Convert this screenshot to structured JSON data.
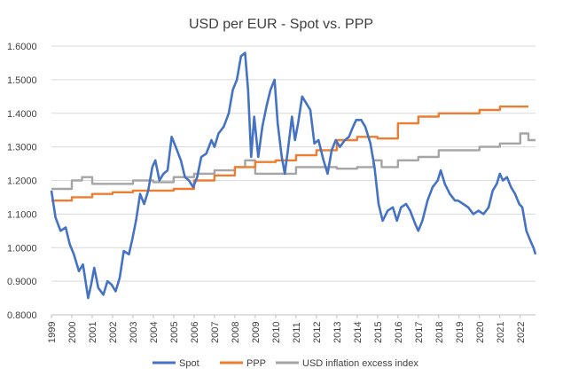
{
  "chart_data": {
    "type": "line",
    "title": "USD per EUR - Spot vs. PPP",
    "xlabel": "",
    "ylabel": "",
    "xlim": [
      1999,
      2022.75
    ],
    "ylim": [
      0.8,
      1.6
    ],
    "y_ticks": [
      "0.8000",
      "0.9000",
      "1.0000",
      "1.1000",
      "1.2000",
      "1.3000",
      "1.4000",
      "1.5000",
      "1.6000"
    ],
    "x_ticks": [
      "1999",
      "2000",
      "2001",
      "2002",
      "2003",
      "2004",
      "2005",
      "2006",
      "2007",
      "2008",
      "2009",
      "2010",
      "2011",
      "2012",
      "2013",
      "2014",
      "2015",
      "2016",
      "2017",
      "2018",
      "2019",
      "2020",
      "2021",
      "2022"
    ],
    "grid": "horizontal",
    "legend_position": "bottom",
    "series": [
      {
        "name": "Spot",
        "color": "#4472C4",
        "points": [
          [
            1999.0,
            1.17
          ],
          [
            1999.2,
            1.09
          ],
          [
            1999.45,
            1.05
          ],
          [
            1999.7,
            1.06
          ],
          [
            1999.9,
            1.01
          ],
          [
            2000.1,
            0.98
          ],
          [
            2000.35,
            0.93
          ],
          [
            2000.55,
            0.95
          ],
          [
            2000.8,
            0.85
          ],
          [
            2000.95,
            0.89
          ],
          [
            2001.1,
            0.94
          ],
          [
            2001.3,
            0.88
          ],
          [
            2001.55,
            0.86
          ],
          [
            2001.75,
            0.9
          ],
          [
            2001.95,
            0.89
          ],
          [
            2002.15,
            0.87
          ],
          [
            2002.35,
            0.91
          ],
          [
            2002.55,
            0.99
          ],
          [
            2002.8,
            0.98
          ],
          [
            2002.95,
            1.02
          ],
          [
            2003.15,
            1.08
          ],
          [
            2003.35,
            1.16
          ],
          [
            2003.55,
            1.13
          ],
          [
            2003.75,
            1.17
          ],
          [
            2003.95,
            1.24
          ],
          [
            2004.1,
            1.26
          ],
          [
            2004.3,
            1.2
          ],
          [
            2004.5,
            1.22
          ],
          [
            2004.7,
            1.23
          ],
          [
            2004.9,
            1.33
          ],
          [
            2005.1,
            1.3
          ],
          [
            2005.35,
            1.26
          ],
          [
            2005.55,
            1.21
          ],
          [
            2005.75,
            1.2
          ],
          [
            2005.95,
            1.18
          ],
          [
            2006.15,
            1.21
          ],
          [
            2006.35,
            1.27
          ],
          [
            2006.6,
            1.28
          ],
          [
            2006.85,
            1.32
          ],
          [
            2007.0,
            1.3
          ],
          [
            2007.2,
            1.34
          ],
          [
            2007.45,
            1.36
          ],
          [
            2007.7,
            1.4
          ],
          [
            2007.9,
            1.47
          ],
          [
            2008.1,
            1.5
          ],
          [
            2008.3,
            1.57
          ],
          [
            2008.5,
            1.58
          ],
          [
            2008.65,
            1.47
          ],
          [
            2008.8,
            1.27
          ],
          [
            2008.95,
            1.39
          ],
          [
            2009.15,
            1.27
          ],
          [
            2009.35,
            1.36
          ],
          [
            2009.55,
            1.42
          ],
          [
            2009.75,
            1.47
          ],
          [
            2009.95,
            1.5
          ],
          [
            2010.1,
            1.37
          ],
          [
            2010.3,
            1.27
          ],
          [
            2010.45,
            1.22
          ],
          [
            2010.6,
            1.29
          ],
          [
            2010.8,
            1.39
          ],
          [
            2010.95,
            1.32
          ],
          [
            2011.1,
            1.37
          ],
          [
            2011.3,
            1.45
          ],
          [
            2011.5,
            1.43
          ],
          [
            2011.7,
            1.41
          ],
          [
            2011.9,
            1.31
          ],
          [
            2012.1,
            1.32
          ],
          [
            2012.35,
            1.26
          ],
          [
            2012.55,
            1.22
          ],
          [
            2012.75,
            1.29
          ],
          [
            2012.95,
            1.32
          ],
          [
            2013.15,
            1.3
          ],
          [
            2013.4,
            1.32
          ],
          [
            2013.6,
            1.33
          ],
          [
            2013.8,
            1.36
          ],
          [
            2013.95,
            1.38
          ],
          [
            2014.2,
            1.38
          ],
          [
            2014.4,
            1.36
          ],
          [
            2014.65,
            1.31
          ],
          [
            2014.85,
            1.24
          ],
          [
            2015.05,
            1.13
          ],
          [
            2015.25,
            1.08
          ],
          [
            2015.5,
            1.11
          ],
          [
            2015.75,
            1.12
          ],
          [
            2015.95,
            1.08
          ],
          [
            2016.15,
            1.12
          ],
          [
            2016.4,
            1.13
          ],
          [
            2016.6,
            1.11
          ],
          [
            2016.85,
            1.07
          ],
          [
            2017.0,
            1.05
          ],
          [
            2017.2,
            1.08
          ],
          [
            2017.45,
            1.14
          ],
          [
            2017.7,
            1.18
          ],
          [
            2017.95,
            1.2
          ],
          [
            2018.1,
            1.23
          ],
          [
            2018.3,
            1.19
          ],
          [
            2018.55,
            1.16
          ],
          [
            2018.8,
            1.14
          ],
          [
            2018.95,
            1.14
          ],
          [
            2019.2,
            1.13
          ],
          [
            2019.45,
            1.12
          ],
          [
            2019.7,
            1.1
          ],
          [
            2019.95,
            1.11
          ],
          [
            2020.2,
            1.1
          ],
          [
            2020.45,
            1.12
          ],
          [
            2020.65,
            1.17
          ],
          [
            2020.85,
            1.19
          ],
          [
            2021.0,
            1.22
          ],
          [
            2021.15,
            1.2
          ],
          [
            2021.35,
            1.21
          ],
          [
            2021.55,
            1.18
          ],
          [
            2021.75,
            1.16
          ],
          [
            2021.95,
            1.13
          ],
          [
            2022.1,
            1.12
          ],
          [
            2022.3,
            1.05
          ],
          [
            2022.5,
            1.02
          ],
          [
            2022.65,
            1.0
          ],
          [
            2022.75,
            0.98
          ]
        ]
      },
      {
        "name": "PPP",
        "color": "#ED7D31",
        "points": [
          [
            1999.0,
            1.14
          ],
          [
            2000.0,
            1.15
          ],
          [
            2001.0,
            1.16
          ],
          [
            2002.0,
            1.165
          ],
          [
            2003.0,
            1.17
          ],
          [
            2004.0,
            1.17
          ],
          [
            2005.0,
            1.175
          ],
          [
            2006.0,
            1.2
          ],
          [
            2007.0,
            1.215
          ],
          [
            2008.0,
            1.24
          ],
          [
            2009.0,
            1.255
          ],
          [
            2010.0,
            1.26
          ],
          [
            2011.0,
            1.275
          ],
          [
            2012.0,
            1.29
          ],
          [
            2013.0,
            1.32
          ],
          [
            2014.0,
            1.33
          ],
          [
            2015.0,
            1.325
          ],
          [
            2016.0,
            1.37
          ],
          [
            2017.0,
            1.39
          ],
          [
            2018.0,
            1.4
          ],
          [
            2019.0,
            1.4
          ],
          [
            2020.0,
            1.41
          ],
          [
            2021.0,
            1.42
          ],
          [
            2022.4,
            1.42
          ]
        ]
      },
      {
        "name": "USD inflation excess index",
        "color": "#A5A5A5",
        "points": [
          [
            1999.0,
            1.175
          ],
          [
            2000.0,
            1.2
          ],
          [
            2000.5,
            1.21
          ],
          [
            2001.0,
            1.19
          ],
          [
            2002.0,
            1.19
          ],
          [
            2003.0,
            1.2
          ],
          [
            2004.0,
            1.195
          ],
          [
            2005.0,
            1.21
          ],
          [
            2006.0,
            1.22
          ],
          [
            2007.0,
            1.23
          ],
          [
            2008.0,
            1.24
          ],
          [
            2008.5,
            1.26
          ],
          [
            2009.0,
            1.22
          ],
          [
            2010.0,
            1.22
          ],
          [
            2011.0,
            1.24
          ],
          [
            2012.0,
            1.24
          ],
          [
            2013.0,
            1.235
          ],
          [
            2014.0,
            1.24
          ],
          [
            2014.8,
            1.26
          ],
          [
            2015.2,
            1.24
          ],
          [
            2016.0,
            1.26
          ],
          [
            2017.0,
            1.27
          ],
          [
            2018.0,
            1.29
          ],
          [
            2019.0,
            1.29
          ],
          [
            2020.0,
            1.3
          ],
          [
            2021.0,
            1.31
          ],
          [
            2022.0,
            1.34
          ],
          [
            2022.4,
            1.32
          ],
          [
            2022.75,
            1.32
          ]
        ]
      }
    ]
  }
}
